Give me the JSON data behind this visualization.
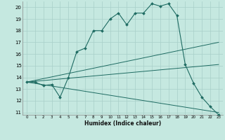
{
  "xlabel": "Humidex (Indice chaleur)",
  "bg_color": "#c5e8e0",
  "grid_color": "#a8cfc8",
  "line_color": "#1e6b62",
  "xlim": [
    -0.5,
    23.5
  ],
  "ylim": [
    10.8,
    20.5
  ],
  "yticks": [
    11,
    12,
    13,
    14,
    15,
    16,
    17,
    18,
    19,
    20
  ],
  "xticks": [
    0,
    1,
    2,
    3,
    4,
    5,
    6,
    7,
    8,
    9,
    10,
    11,
    12,
    13,
    14,
    15,
    16,
    17,
    18,
    19,
    20,
    21,
    22,
    23
  ],
  "line1_x": [
    0,
    1,
    2,
    3,
    4,
    5,
    6,
    7,
    8,
    9,
    10,
    11,
    12,
    13,
    14,
    15,
    16,
    17,
    18,
    19,
    20,
    21,
    22,
    23
  ],
  "line1_y": [
    13.6,
    13.6,
    13.3,
    13.4,
    12.3,
    14.0,
    16.2,
    16.5,
    18.0,
    18.0,
    19.0,
    19.5,
    18.5,
    19.5,
    19.5,
    20.3,
    20.1,
    20.3,
    19.3,
    15.1,
    13.5,
    12.3,
    11.5,
    10.8
  ],
  "line2_x": [
    0,
    23
  ],
  "line2_y": [
    13.6,
    17.0
  ],
  "line3_x": [
    0,
    23
  ],
  "line3_y": [
    13.6,
    15.1
  ],
  "line4_x": [
    0,
    23
  ],
  "line4_y": [
    13.6,
    11.0
  ]
}
